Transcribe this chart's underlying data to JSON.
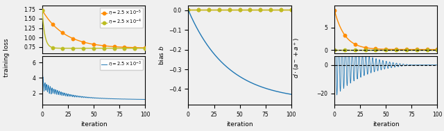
{
  "fig_width": 6.4,
  "fig_height": 1.89,
  "dpi": 100,
  "colors": {
    "orange": "#FF8C00",
    "olive": "#BCBD22",
    "blue": "#1f77b4"
  },
  "xlabel": "iteration",
  "n_iters": 501
}
